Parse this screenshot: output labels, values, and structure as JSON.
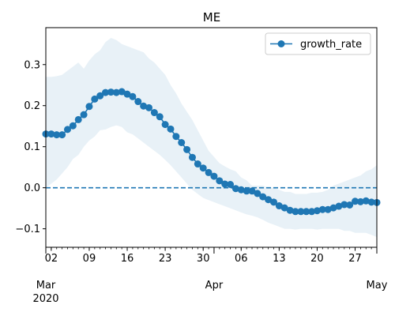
{
  "chart_data": {
    "type": "line",
    "title": "ME",
    "xlabel": "",
    "ylabel": "",
    "x_start": "2020-03-01",
    "x_end": "2020-05-01",
    "ylim": [
      -0.145,
      0.39
    ],
    "yticks": [
      -0.1,
      0.0,
      0.1,
      0.2,
      0.3
    ],
    "ytick_labels": [
      "−0.1",
      "0.0",
      "0.1",
      "0.2",
      "0.3"
    ],
    "xticks": [
      {
        "date": "2020-03-02",
        "label": "02"
      },
      {
        "date": "2020-03-09",
        "label": "09"
      },
      {
        "date": "2020-03-16",
        "label": "16"
      },
      {
        "date": "2020-03-23",
        "label": "23"
      },
      {
        "date": "2020-03-30",
        "label": "30"
      },
      {
        "date": "2020-04-06",
        "label": "06"
      },
      {
        "date": "2020-04-13",
        "label": "13"
      },
      {
        "date": "2020-04-20",
        "label": "20"
      },
      {
        "date": "2020-04-27",
        "label": "27"
      }
    ],
    "month_ticks": [
      {
        "date": "2020-03-01",
        "label": "Mar",
        "sublabel": "2020"
      },
      {
        "date": "2020-04-01",
        "label": "Apr",
        "sublabel": ""
      },
      {
        "date": "2020-05-01",
        "label": "May",
        "sublabel": ""
      }
    ],
    "reference_line": {
      "y": 0.0,
      "style": "dashed"
    },
    "legend": {
      "position": "top-right"
    },
    "series": [
      {
        "name": "growth_rate",
        "color": "#1f77b4",
        "marker": "circle",
        "x": [
          "2020-03-01",
          "2020-03-02",
          "2020-03-03",
          "2020-03-04",
          "2020-03-05",
          "2020-03-06",
          "2020-03-07",
          "2020-03-08",
          "2020-03-09",
          "2020-03-10",
          "2020-03-11",
          "2020-03-12",
          "2020-03-13",
          "2020-03-14",
          "2020-03-15",
          "2020-03-16",
          "2020-03-17",
          "2020-03-18",
          "2020-03-19",
          "2020-03-20",
          "2020-03-21",
          "2020-03-22",
          "2020-03-23",
          "2020-03-24",
          "2020-03-25",
          "2020-03-26",
          "2020-03-27",
          "2020-03-28",
          "2020-03-29",
          "2020-03-30",
          "2020-03-31",
          "2020-04-01",
          "2020-04-02",
          "2020-04-03",
          "2020-04-04",
          "2020-04-05",
          "2020-04-06",
          "2020-04-07",
          "2020-04-08",
          "2020-04-09",
          "2020-04-10",
          "2020-04-11",
          "2020-04-12",
          "2020-04-13",
          "2020-04-14",
          "2020-04-15",
          "2020-04-16",
          "2020-04-17",
          "2020-04-18",
          "2020-04-19",
          "2020-04-20",
          "2020-04-21",
          "2020-04-22",
          "2020-04-23",
          "2020-04-24",
          "2020-04-25",
          "2020-04-26",
          "2020-04-27",
          "2020-04-28",
          "2020-04-29",
          "2020-04-30",
          "2020-05-01"
        ],
        "y": [
          0.131,
          0.131,
          0.129,
          0.129,
          0.142,
          0.151,
          0.166,
          0.178,
          0.198,
          0.216,
          0.224,
          0.232,
          0.233,
          0.232,
          0.234,
          0.228,
          0.222,
          0.21,
          0.199,
          0.195,
          0.183,
          0.173,
          0.154,
          0.143,
          0.125,
          0.11,
          0.093,
          0.074,
          0.058,
          0.048,
          0.037,
          0.028,
          0.017,
          0.009,
          0.008,
          -0.002,
          -0.005,
          -0.008,
          -0.008,
          -0.014,
          -0.022,
          -0.029,
          -0.035,
          -0.044,
          -0.049,
          -0.055,
          -0.058,
          -0.058,
          -0.058,
          -0.058,
          -0.056,
          -0.053,
          -0.053,
          -0.049,
          -0.045,
          -0.041,
          -0.042,
          -0.033,
          -0.034,
          -0.032,
          -0.035,
          -0.036
        ],
        "lower": [
          0.0,
          0.01,
          0.02,
          0.035,
          0.05,
          0.07,
          0.08,
          0.1,
          0.115,
          0.125,
          0.14,
          0.142,
          0.148,
          0.152,
          0.148,
          0.135,
          0.13,
          0.12,
          0.11,
          0.1,
          0.09,
          0.08,
          0.068,
          0.055,
          0.04,
          0.025,
          0.01,
          -0.005,
          -0.015,
          -0.025,
          -0.03,
          -0.035,
          -0.04,
          -0.045,
          -0.05,
          -0.055,
          -0.06,
          -0.065,
          -0.068,
          -0.072,
          -0.078,
          -0.085,
          -0.09,
          -0.095,
          -0.1,
          -0.1,
          -0.102,
          -0.1,
          -0.1,
          -0.1,
          -0.102,
          -0.1,
          -0.1,
          -0.1,
          -0.1,
          -0.105,
          -0.105,
          -0.11,
          -0.11,
          -0.11,
          -0.115,
          -0.12
        ],
        "upper": [
          0.27,
          0.27,
          0.272,
          0.275,
          0.285,
          0.295,
          0.305,
          0.29,
          0.31,
          0.325,
          0.335,
          0.355,
          0.365,
          0.36,
          0.35,
          0.345,
          0.34,
          0.335,
          0.33,
          0.315,
          0.305,
          0.29,
          0.275,
          0.25,
          0.23,
          0.205,
          0.185,
          0.165,
          0.14,
          0.115,
          0.09,
          0.075,
          0.06,
          0.052,
          0.045,
          0.04,
          0.025,
          0.018,
          0.005,
          0.005,
          0.005,
          0.0,
          0.0,
          -0.005,
          -0.01,
          -0.01,
          -0.015,
          -0.015,
          -0.015,
          -0.012,
          -0.012,
          -0.01,
          -0.005,
          0.005,
          0.01,
          0.015,
          0.02,
          0.025,
          0.03,
          0.04,
          0.045,
          0.055
        ]
      }
    ]
  }
}
